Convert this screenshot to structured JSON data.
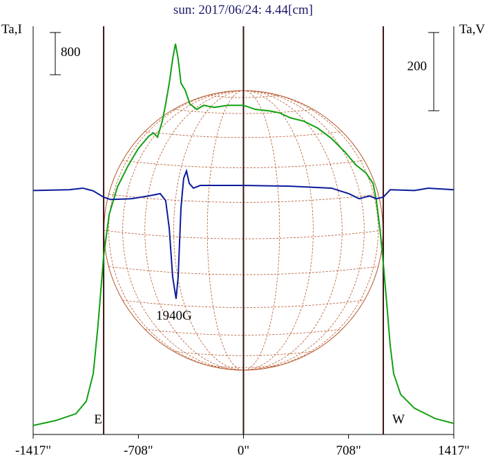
{
  "chart_data": {
    "type": "line",
    "title": "sun: 2017/06/24: 4.44[cm]",
    "y_label": "Ta,I",
    "y2_label": "Ta,V",
    "xlim": [
      -1417,
      1417
    ],
    "xticks": [
      {
        "value": -1417,
        "label": "-1417\""
      },
      {
        "value": -708,
        "label": "-708\""
      },
      {
        "value": 0,
        "label": "0\""
      },
      {
        "value": 708,
        "label": "708\""
      },
      {
        "value": 1417,
        "label": "1417\""
      }
    ],
    "ylim": [
      0,
      7738
    ],
    "y2lim": [
      -628,
      416
    ],
    "scale_bars": [
      {
        "value": 800
      },
      {
        "value": 200,
        "axis": "y2"
      }
    ],
    "markers": [
      {
        "x": -942,
        "label": "E"
      },
      {
        "x": 0
      },
      {
        "x": 942,
        "label": "W"
      }
    ],
    "annotations": [
      "1940G"
    ],
    "series": [
      {
        "name": "Ta,I",
        "color": "#10a010",
        "x": [
          -1417,
          -1268,
          -1129,
          -1059,
          -1012,
          -980,
          -942,
          -905,
          -849,
          -779,
          -710,
          -640,
          -607,
          -579,
          -547,
          -524,
          -500,
          -477,
          -458,
          -440,
          -421,
          -393,
          -361,
          -314,
          -268,
          -198,
          -105,
          0,
          81,
          174,
          244,
          314,
          407,
          500,
          593,
          686,
          756,
          826,
          873,
          896,
          919,
          942,
          966,
          989,
          1012,
          1059,
          1152,
          1292,
          1417
        ],
        "values": [
          170,
          262,
          393,
          629,
          1154,
          2071,
          3382,
          4169,
          4693,
          5087,
          5414,
          5650,
          5716,
          5637,
          5939,
          6267,
          6660,
          7119,
          7407,
          7119,
          6660,
          6529,
          6267,
          6162,
          6240,
          6201,
          6240,
          6240,
          6162,
          6135,
          6096,
          6004,
          5939,
          5808,
          5611,
          5349,
          5113,
          4956,
          4759,
          4431,
          3907,
          3251,
          2465,
          1678,
          1154,
          760,
          498,
          302,
          210
        ]
      },
      {
        "name": "Ta,V",
        "color": "#0a1a9a",
        "axis": "y2",
        "x": [
          -1417,
          -1175,
          -1082,
          -1012,
          -942,
          -896,
          -756,
          -640,
          -561,
          -524,
          -500,
          -477,
          -454,
          -440,
          -421,
          -403,
          -384,
          -365,
          -337,
          -291,
          0,
          314,
          593,
          710,
          779,
          849,
          896,
          942,
          989,
          1152,
          1245,
          1417
        ],
        "values": [
          -4,
          -2,
          2,
          -5,
          -21,
          -27,
          -25,
          -18,
          -12,
          -30,
          -101,
          -225,
          -281,
          -225,
          -48,
          27,
          46,
          14,
          2,
          9,
          9,
          7,
          2,
          -12,
          -25,
          -18,
          -25,
          -21,
          -2,
          -4,
          2,
          -2
        ]
      }
    ]
  }
}
